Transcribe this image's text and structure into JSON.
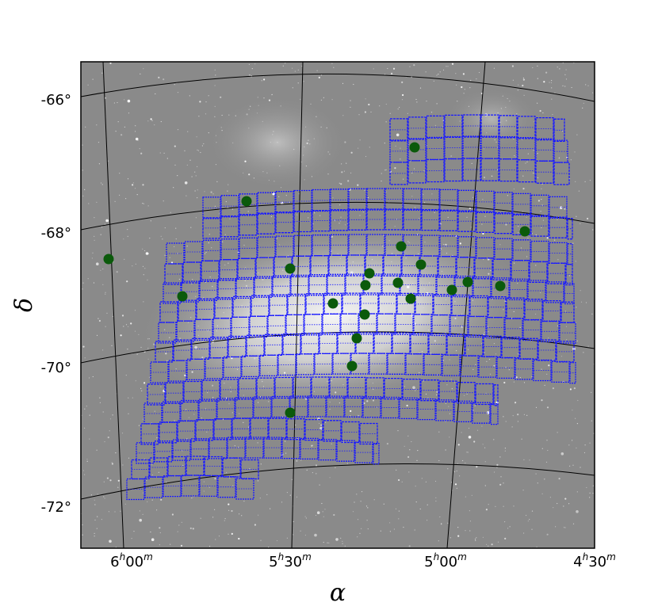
{
  "figure": {
    "yaxis": {
      "symbol": "δ",
      "ticks": [
        "-66°",
        "-68°",
        "-70°",
        "-72°"
      ]
    },
    "xaxis": {
      "symbol": "α",
      "ticks": [
        {
          "h": "6",
          "m": "00"
        },
        {
          "h": "5",
          "m": "30"
        },
        {
          "h": "5",
          "m": "00"
        },
        {
          "h": "4",
          "m": "30"
        }
      ],
      "hour_mark": "h",
      "minute_mark": "m"
    },
    "colors": {
      "background": "#8a8a8a",
      "footprint": "#1a1aff",
      "points": "#0b5a0b",
      "grid": "#000000"
    },
    "overlay": {
      "point_count": 18,
      "footprint": "blue tiled survey fields"
    }
  }
}
